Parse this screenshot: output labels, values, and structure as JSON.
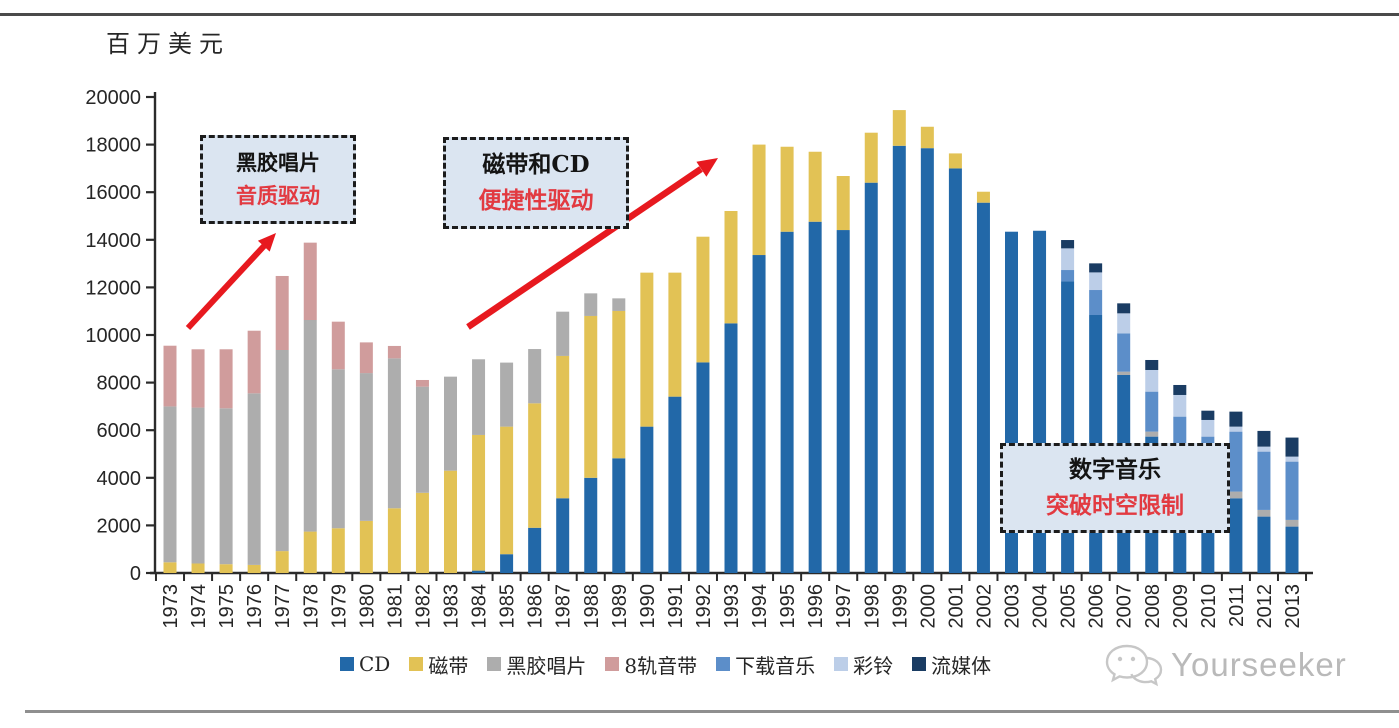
{
  "page": {
    "watermark": "Yourseeker"
  },
  "chart_data": {
    "type": "bar",
    "stacked": true,
    "ylabel": "百万美元",
    "ylim": [
      0,
      20000
    ],
    "ytick_step": 2000,
    "grid": false,
    "legend_position": "bottom",
    "categories": [
      "1973",
      "1974",
      "1975",
      "1976",
      "1977",
      "1978",
      "1979",
      "1980",
      "1981",
      "1982",
      "1983",
      "1984",
      "1985",
      "1986",
      "1987",
      "1988",
      "1989",
      "1990",
      "1991",
      "1992",
      "1993",
      "1994",
      "1995",
      "1996",
      "1997",
      "1998",
      "1999",
      "2000",
      "2001",
      "2002",
      "2003",
      "2004",
      "2005",
      "2006",
      "2007",
      "2008",
      "2009",
      "2010",
      "2011",
      "2012",
      "2013"
    ],
    "series": [
      {
        "name": "CD",
        "color": "#2268a8",
        "values": [
          0,
          0,
          0,
          0,
          0,
          0,
          0,
          0,
          0,
          0,
          0,
          100,
          790,
          1900,
          3140,
          4000,
          4820,
          6150,
          7410,
          8850,
          10490,
          13360,
          14340,
          14760,
          14410,
          16400,
          17950,
          17850,
          17000,
          15560,
          14340,
          14380,
          12250,
          10840,
          8320,
          5730,
          4350,
          3300,
          3140,
          2370,
          1950
        ]
      },
      {
        "name": "磁带",
        "color": "#e2c255",
        "values": [
          450,
          400,
          370,
          340,
          920,
          1740,
          1880,
          2190,
          2720,
          3370,
          4300,
          5700,
          5360,
          5230,
          5980,
          6800,
          6190,
          6470,
          5210,
          5280,
          4720,
          4640,
          3570,
          2940,
          2270,
          2100,
          1500,
          900,
          630,
          460,
          0,
          0,
          0,
          0,
          0,
          0,
          0,
          0,
          0,
          0,
          0
        ]
      },
      {
        "name": "黑胶唱片",
        "color": "#adadad",
        "values": [
          6550,
          6550,
          6550,
          7210,
          8450,
          8890,
          6680,
          6210,
          6300,
          4460,
          3950,
          3180,
          2690,
          2280,
          1860,
          950,
          530,
          0,
          0,
          0,
          0,
          0,
          0,
          0,
          0,
          0,
          0,
          0,
          0,
          0,
          0,
          0,
          0,
          0,
          140,
          210,
          190,
          160,
          280,
          280,
          280
        ]
      },
      {
        "name": "8轨音带",
        "color": "#d09c9c",
        "values": [
          2550,
          2450,
          2480,
          2630,
          3110,
          3250,
          2000,
          1290,
          520,
          280,
          0,
          0,
          0,
          0,
          0,
          0,
          0,
          0,
          0,
          0,
          0,
          0,
          0,
          0,
          0,
          0,
          0,
          0,
          0,
          0,
          0,
          0,
          0,
          0,
          0,
          0,
          0,
          0,
          0,
          0,
          0
        ]
      },
      {
        "name": "下载音乐",
        "color": "#5c8ec9",
        "values": [
          0,
          0,
          0,
          0,
          0,
          0,
          0,
          0,
          0,
          0,
          0,
          0,
          0,
          0,
          0,
          0,
          0,
          0,
          0,
          0,
          0,
          0,
          0,
          0,
          0,
          0,
          0,
          0,
          0,
          0,
          0,
          0,
          480,
          1050,
          1610,
          1680,
          2030,
          2270,
          2520,
          2450,
          2450
        ]
      },
      {
        "name": "彩铃",
        "color": "#bccee8",
        "values": [
          0,
          0,
          0,
          0,
          0,
          0,
          0,
          0,
          0,
          0,
          0,
          0,
          0,
          0,
          0,
          0,
          0,
          0,
          0,
          0,
          0,
          0,
          0,
          0,
          0,
          0,
          0,
          0,
          0,
          0,
          0,
          0,
          910,
          740,
          840,
          910,
          910,
          700,
          210,
          210,
          210
        ]
      },
      {
        "name": "流媒体",
        "color": "#1a3c63",
        "values": [
          0,
          0,
          0,
          0,
          0,
          0,
          0,
          0,
          0,
          0,
          0,
          0,
          0,
          0,
          0,
          0,
          0,
          0,
          0,
          0,
          0,
          0,
          0,
          0,
          0,
          0,
          0,
          0,
          0,
          0,
          0,
          0,
          350,
          380,
          420,
          420,
          420,
          390,
          630,
          660,
          800
        ]
      }
    ],
    "annotations": [
      {
        "title": "黑胶唱片",
        "subtitle": "音质驱动"
      },
      {
        "title": "磁带和CD",
        "subtitle": "便捷性驱动"
      },
      {
        "title": "数字音乐",
        "subtitle": "突破时空限制"
      }
    ]
  }
}
